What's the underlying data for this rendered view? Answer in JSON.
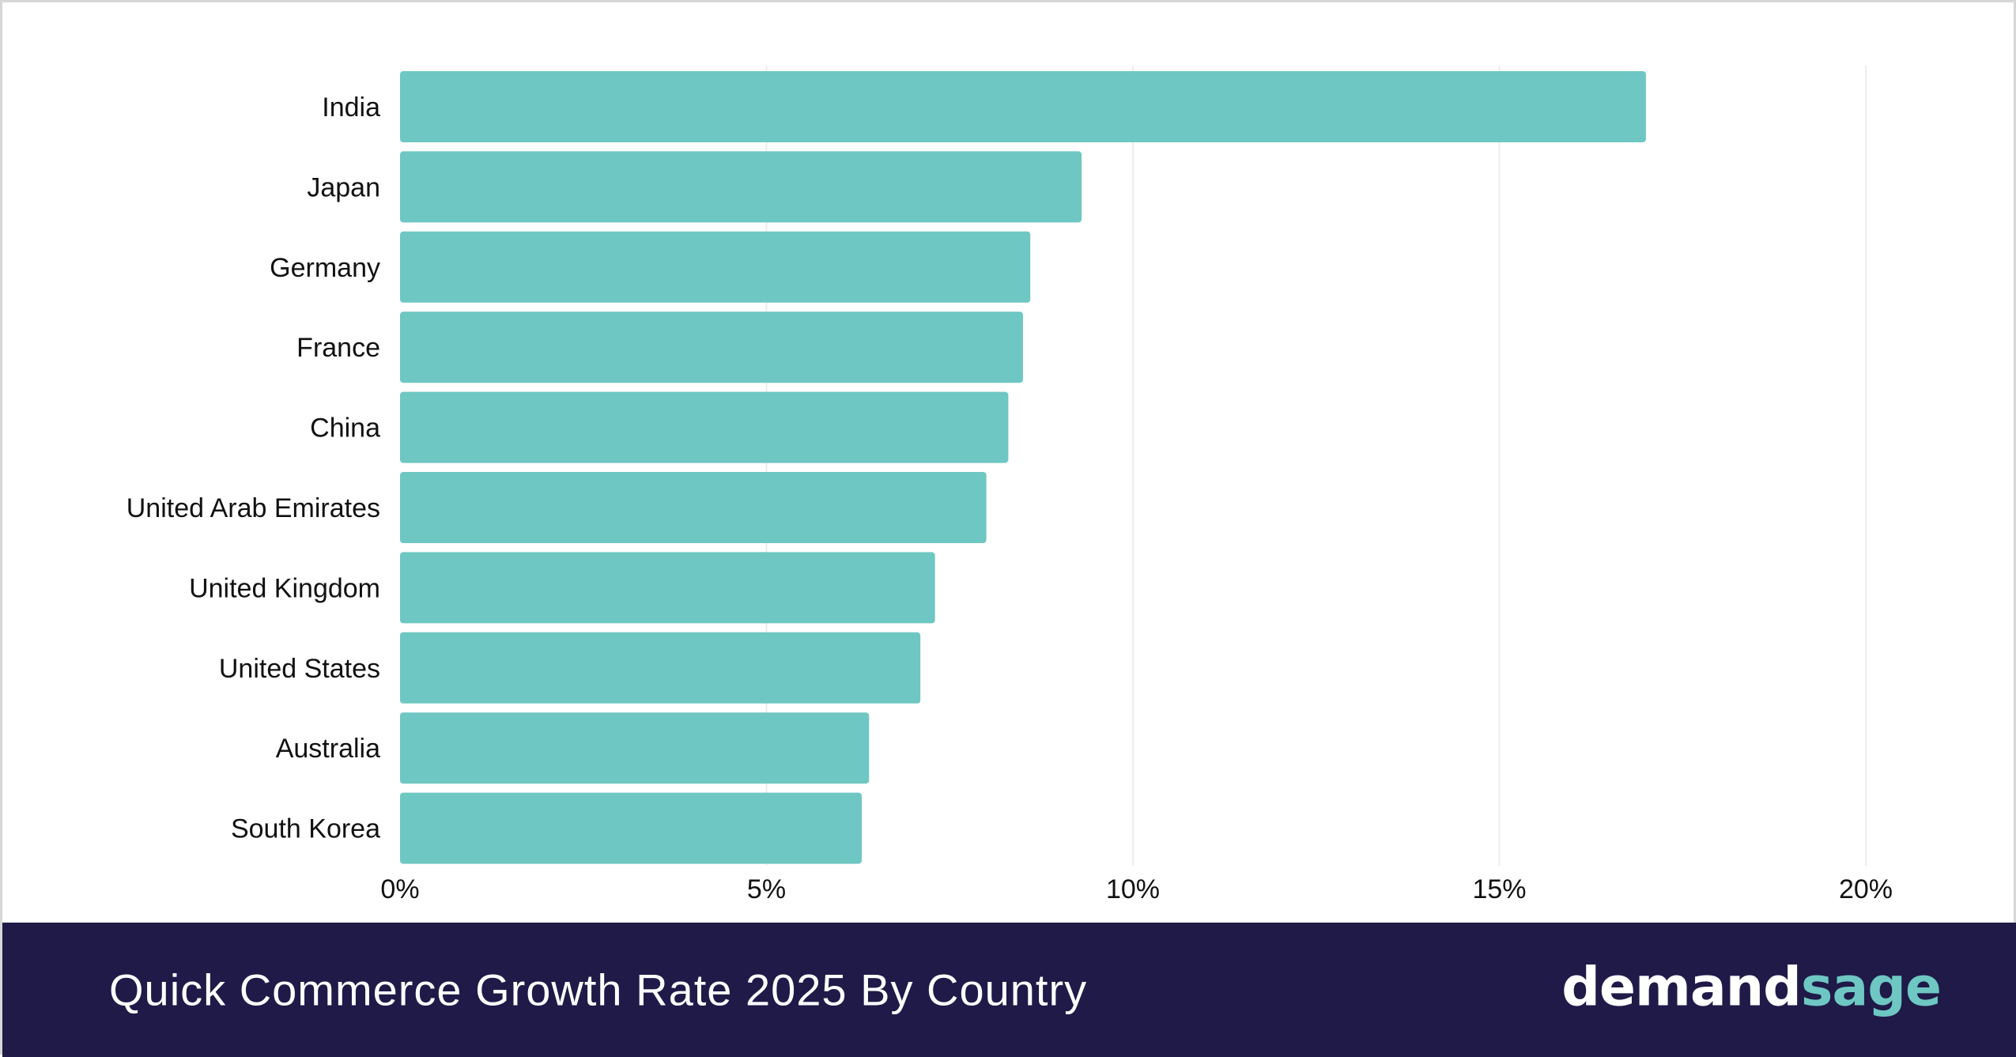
{
  "chart_data": {
    "type": "bar",
    "orientation": "horizontal",
    "categories": [
      "India",
      "Japan",
      "Germany",
      "France",
      "China",
      "United Arab Emirates",
      "United Kingdom",
      "United States",
      "Australia",
      "South Korea"
    ],
    "values": [
      17.0,
      9.3,
      8.6,
      8.5,
      8.3,
      8.0,
      7.3,
      7.1,
      6.4,
      6.3
    ],
    "x_ticks": [
      "0%",
      "5%",
      "10%",
      "15%",
      "20%"
    ],
    "xlim": [
      0,
      20
    ],
    "grid": true,
    "bar_color": "#6ec7c2",
    "grid_color": "#ececec"
  },
  "footer": {
    "title": "Quick Commerce Growth Rate 2025 By Country",
    "background": "#1f1a48"
  },
  "brand": {
    "part1": "demand",
    "part2": "sage",
    "color1": "#ffffff",
    "color2": "#6ec7c2"
  }
}
